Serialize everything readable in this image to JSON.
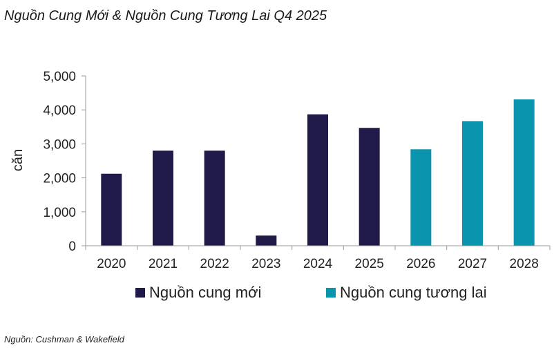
{
  "chart_data": {
    "type": "bar",
    "title": "Nguồn Cung Mới & Nguồn Cung Tương Lai Q4 2025",
    "source": "Nguồn: Cushman & Wakefield",
    "ylabel": "căn",
    "xlabel": "",
    "ylim": [
      0,
      5000
    ],
    "yticks": [
      "0",
      "1,000",
      "2,000",
      "3,000",
      "4,000",
      "5,000"
    ],
    "ytick_values": [
      0,
      1000,
      2000,
      3000,
      4000,
      5000
    ],
    "categories": [
      "2020",
      "2021",
      "2022",
      "2023",
      "2024",
      "2025",
      "2026",
      "2027",
      "2028"
    ],
    "values": [
      2120,
      2800,
      2800,
      300,
      3870,
      3470,
      2840,
      3670,
      4310
    ],
    "series_index": [
      0,
      0,
      0,
      0,
      0,
      0,
      1,
      1,
      1
    ],
    "series": [
      {
        "name": "Nguồn cung mới",
        "color": "#1f1a48"
      },
      {
        "name": "Nguồn cung tương lai",
        "color": "#0b94ad"
      }
    ],
    "legend": "bottom",
    "grid": false
  }
}
